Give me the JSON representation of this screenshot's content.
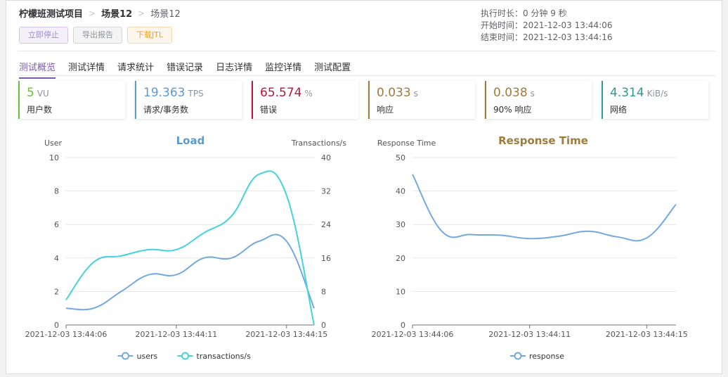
{
  "breadcrumb": {
    "project": "柠檬班测试项目",
    "scenario": "场景12",
    "current": "场景12"
  },
  "buttons": {
    "stop": "立即停止",
    "export": "导出报告",
    "download": "下载JTL"
  },
  "meta": {
    "duration_label": "执行时长：",
    "duration_value": "0 分钟 9 秒",
    "start_label": "开始时间：",
    "start_value": "2021-12-03 13:44:06",
    "end_label": "结束时间：",
    "end_value": "2021-12-03 13:44:16"
  },
  "tabs": [
    "测试概览",
    "测试详情",
    "请求统计",
    "错误记录",
    "日志详情",
    "监控详情",
    "测试配置"
  ],
  "cards": [
    {
      "value": "5",
      "unit": "VU",
      "label": "用户数",
      "color": "#67c23a"
    },
    {
      "value": "19.363",
      "unit": "TPS",
      "label": "请求/事务数",
      "color": "#5b9bd5"
    },
    {
      "value": "65.574",
      "unit": "%",
      "label": "错误",
      "color": "#c0143c"
    },
    {
      "value": "0.033",
      "unit": "s",
      "label": "响应",
      "color": "#a07b3c"
    },
    {
      "value": "0.038",
      "unit": "s",
      "label": "90% 响应",
      "color": "#a07b3c"
    },
    {
      "value": "4.314",
      "unit": "KiB/s",
      "label": "网络",
      "color": "#2a9d8f"
    }
  ],
  "chart_data": [
    {
      "type": "line",
      "title": "Load",
      "title_color": "#5b9bd5",
      "ylabel_left": "User",
      "ylabel_right": "Transactions/s",
      "ylim_left": [
        0,
        10
      ],
      "ylim_right": [
        0,
        40
      ],
      "yticks_left": [
        0,
        2,
        4,
        6,
        8,
        10
      ],
      "yticks_right": [
        0,
        8,
        16,
        24,
        32,
        40
      ],
      "x": [
        0,
        1,
        2,
        3,
        4,
        5,
        6,
        7,
        8,
        9
      ],
      "xtick_labels": [
        {
          "x": 0,
          "label": "2021-12-03 13:44:06"
        },
        {
          "x": 4,
          "label": "2021-12-03 13:44:11"
        },
        {
          "x": 8,
          "label": "2021-12-03 13:44:15"
        }
      ],
      "series": [
        {
          "name": "users",
          "axis": "left",
          "color": "#73a9e0",
          "values": [
            1,
            1,
            2,
            3,
            3,
            4,
            4,
            5,
            5,
            1
          ]
        },
        {
          "name": "transactions/s",
          "axis": "right",
          "color": "#44d3d8",
          "values": [
            6,
            15,
            16.5,
            18,
            18,
            22,
            26,
            36,
            31,
            0
          ]
        }
      ],
      "legend": [
        "users",
        "transactions/s"
      ],
      "legend_position": "bottom"
    },
    {
      "type": "line",
      "title": "Response Time",
      "title_color": "#a07b3c",
      "ylabel_left": "Response Time",
      "ylim_left": [
        0,
        50
      ],
      "yticks_left": [
        0,
        10,
        20,
        30,
        40,
        50
      ],
      "x": [
        0,
        1,
        2,
        3,
        4,
        5,
        6,
        7,
        8,
        9
      ],
      "xtick_labels": [
        {
          "x": 0,
          "label": "2021-12-03 13:44:06"
        },
        {
          "x": 4,
          "label": "2021-12-03 13:44:11"
        },
        {
          "x": 8,
          "label": "2021-12-03 13:44:15"
        }
      ],
      "series": [
        {
          "name": "response",
          "axis": "left",
          "color": "#73a9e0",
          "values": [
            45,
            28,
            27,
            26.8,
            25.8,
            26.5,
            28,
            26.3,
            26,
            36
          ]
        }
      ],
      "legend": [
        "response"
      ],
      "legend_position": "bottom"
    }
  ]
}
